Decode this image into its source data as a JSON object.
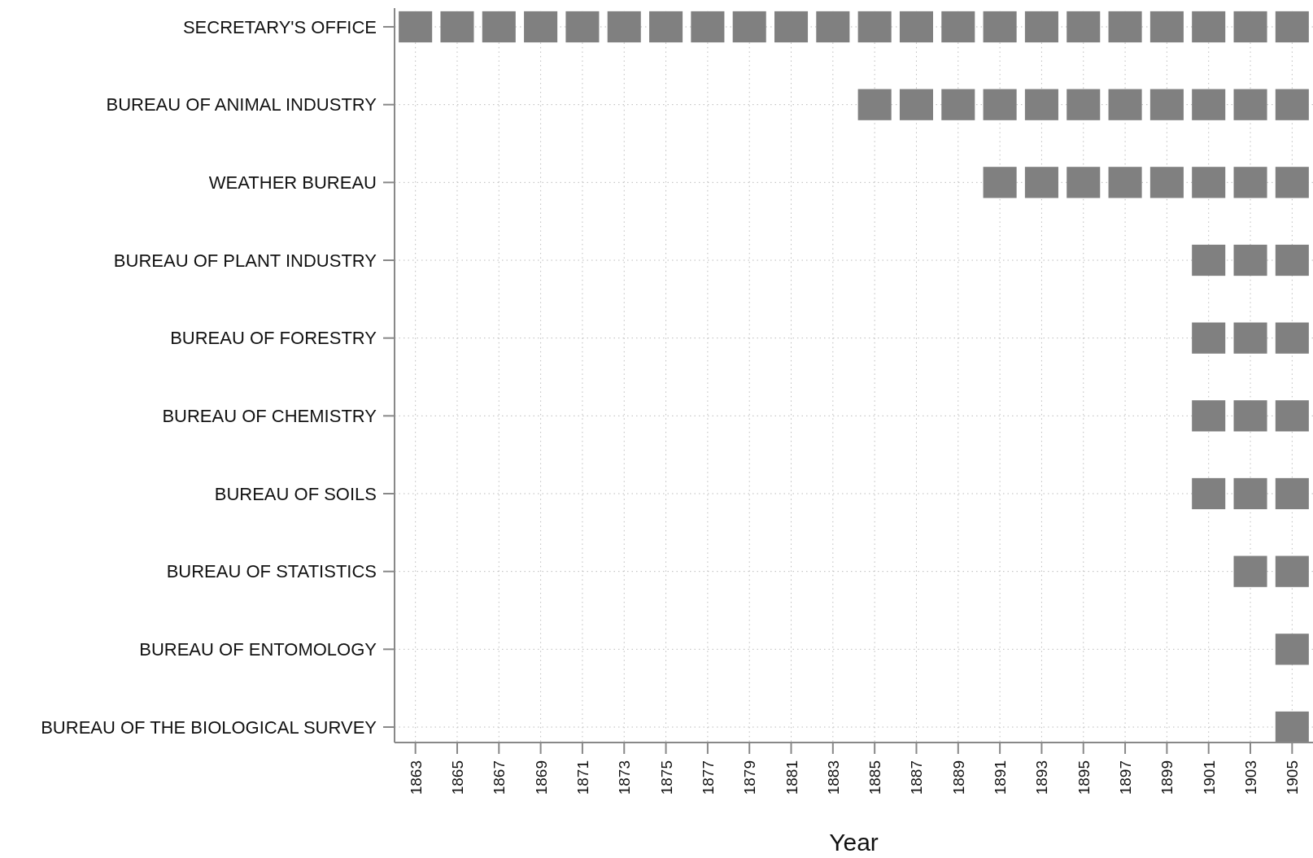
{
  "chart_data": {
    "type": "bar",
    "orientation": "horizontal",
    "xlabel": "Year",
    "grid": true,
    "categories": [
      "SECRETARY'S OFFICE",
      "BUREAU OF ANIMAL INDUSTRY",
      "WEATHER BUREAU",
      "BUREAU OF PLANT INDUSTRY",
      "BUREAU OF FORESTRY",
      "BUREAU OF CHEMISTRY",
      "BUREAU OF SOILS",
      "BUREAU OF STATISTICS",
      "BUREAU OF ENTOMOLOGY",
      "BUREAU OF THE BIOLOGICAL SURVEY"
    ],
    "series": [
      {
        "color": "#808080",
        "base": [
          1862.2,
          null,
          null,
          null,
          null,
          null,
          null,
          null,
          null,
          null
        ],
        "values": [
          1.6,
          null,
          null,
          null,
          null,
          null,
          null,
          null,
          null,
          null
        ]
      },
      {
        "color": "#808080",
        "base": [
          1864.2,
          null,
          null,
          null,
          null,
          null,
          null,
          null,
          null,
          null
        ],
        "values": [
          1.6,
          null,
          null,
          null,
          null,
          null,
          null,
          null,
          null,
          null
        ]
      },
      {
        "color": "#808080",
        "base": [
          1866.2,
          null,
          null,
          null,
          null,
          null,
          null,
          null,
          null,
          null
        ],
        "values": [
          1.6,
          null,
          null,
          null,
          null,
          null,
          null,
          null,
          null,
          null
        ]
      },
      {
        "color": "#808080",
        "base": [
          1868.2,
          null,
          null,
          null,
          null,
          null,
          null,
          null,
          null,
          null
        ],
        "values": [
          1.6,
          null,
          null,
          null,
          null,
          null,
          null,
          null,
          null,
          null
        ]
      },
      {
        "color": "#808080",
        "base": [
          1870.2,
          null,
          null,
          null,
          null,
          null,
          null,
          null,
          null,
          null
        ],
        "values": [
          1.6,
          null,
          null,
          null,
          null,
          null,
          null,
          null,
          null,
          null
        ]
      },
      {
        "color": "#808080",
        "base": [
          1872.2,
          null,
          null,
          null,
          null,
          null,
          null,
          null,
          null,
          null
        ],
        "values": [
          1.6,
          null,
          null,
          null,
          null,
          null,
          null,
          null,
          null,
          null
        ]
      },
      {
        "color": "#808080",
        "base": [
          1874.2,
          null,
          null,
          null,
          null,
          null,
          null,
          null,
          null,
          null
        ],
        "values": [
          1.6,
          null,
          null,
          null,
          null,
          null,
          null,
          null,
          null,
          null
        ]
      },
      {
        "color": "#808080",
        "base": [
          1876.2,
          null,
          null,
          null,
          null,
          null,
          null,
          null,
          null,
          null
        ],
        "values": [
          1.6,
          null,
          null,
          null,
          null,
          null,
          null,
          null,
          null,
          null
        ]
      },
      {
        "color": "#808080",
        "base": [
          1878.2,
          null,
          null,
          null,
          null,
          null,
          null,
          null,
          null,
          null
        ],
        "values": [
          1.6,
          null,
          null,
          null,
          null,
          null,
          null,
          null,
          null,
          null
        ]
      },
      {
        "color": "#808080",
        "base": [
          1880.2,
          null,
          null,
          null,
          null,
          null,
          null,
          null,
          null,
          null
        ],
        "values": [
          1.6,
          null,
          null,
          null,
          null,
          null,
          null,
          null,
          null,
          null
        ]
      },
      {
        "color": "#808080",
        "base": [
          1882.2,
          null,
          null,
          null,
          null,
          null,
          null,
          null,
          null,
          null
        ],
        "values": [
          1.6,
          null,
          null,
          null,
          null,
          null,
          null,
          null,
          null,
          null
        ]
      },
      {
        "color": "#808080",
        "base": [
          1884.2,
          1884.2,
          null,
          null,
          null,
          null,
          null,
          null,
          null,
          null
        ],
        "values": [
          1.6,
          1.6,
          null,
          null,
          null,
          null,
          null,
          null,
          null,
          null
        ]
      },
      {
        "color": "#808080",
        "base": [
          1886.2,
          1886.2,
          null,
          null,
          null,
          null,
          null,
          null,
          null,
          null
        ],
        "values": [
          1.6,
          1.6,
          null,
          null,
          null,
          null,
          null,
          null,
          null,
          null
        ]
      },
      {
        "color": "#808080",
        "base": [
          1888.2,
          1888.2,
          null,
          null,
          null,
          null,
          null,
          null,
          null,
          null
        ],
        "values": [
          1.6,
          1.6,
          null,
          null,
          null,
          null,
          null,
          null,
          null,
          null
        ]
      },
      {
        "color": "#808080",
        "base": [
          1890.2,
          1890.2,
          1890.2,
          null,
          null,
          null,
          null,
          null,
          null,
          null
        ],
        "values": [
          1.6,
          1.6,
          1.6,
          null,
          null,
          null,
          null,
          null,
          null,
          null
        ]
      },
      {
        "color": "#808080",
        "base": [
          1892.2,
          1892.2,
          1892.2,
          null,
          null,
          null,
          null,
          null,
          null,
          null
        ],
        "values": [
          1.6,
          1.6,
          1.6,
          null,
          null,
          null,
          null,
          null,
          null,
          null
        ]
      },
      {
        "color": "#808080",
        "base": [
          1894.2,
          1894.2,
          1894.2,
          null,
          null,
          null,
          null,
          null,
          null,
          null
        ],
        "values": [
          1.6,
          1.6,
          1.6,
          null,
          null,
          null,
          null,
          null,
          null,
          null
        ]
      },
      {
        "color": "#808080",
        "base": [
          1896.2,
          1896.2,
          1896.2,
          null,
          null,
          null,
          null,
          null,
          null,
          null
        ],
        "values": [
          1.6,
          1.6,
          1.6,
          null,
          null,
          null,
          null,
          null,
          null,
          null
        ]
      },
      {
        "color": "#808080",
        "base": [
          1898.2,
          1898.2,
          1898.2,
          null,
          null,
          null,
          null,
          null,
          null,
          null
        ],
        "values": [
          1.6,
          1.6,
          1.6,
          null,
          null,
          null,
          null,
          null,
          null,
          null
        ]
      },
      {
        "color": "#808080",
        "base": [
          1900.2,
          1900.2,
          1900.2,
          1900.2,
          1900.2,
          1900.2,
          1900.2,
          null,
          null,
          null
        ],
        "values": [
          1.6,
          1.6,
          1.6,
          1.6,
          1.6,
          1.6,
          1.6,
          null,
          null,
          null
        ]
      },
      {
        "color": "#808080",
        "base": [
          1902.2,
          1902.2,
          1902.2,
          1902.2,
          1902.2,
          1902.2,
          1902.2,
          1902.2,
          null,
          null
        ],
        "values": [
          1.6,
          1.6,
          1.6,
          1.6,
          1.6,
          1.6,
          1.6,
          1.6,
          null,
          null
        ]
      },
      {
        "color": "#808080",
        "base": [
          1904.2,
          1904.2,
          1904.2,
          1904.2,
          1904.2,
          1904.2,
          1904.2,
          1904.2,
          1904.2,
          1904.2
        ],
        "values": [
          1.6,
          1.6,
          1.6,
          1.6,
          1.6,
          1.6,
          1.6,
          1.6,
          1.6,
          1.6
        ]
      }
    ],
    "xlim": [
      1862,
      1906
    ],
    "xticks": [
      1863,
      1865,
      1867,
      1869,
      1871,
      1873,
      1875,
      1877,
      1879,
      1881,
      1883,
      1885,
      1887,
      1889,
      1891,
      1893,
      1895,
      1897,
      1899,
      1901,
      1903,
      1905
    ]
  }
}
